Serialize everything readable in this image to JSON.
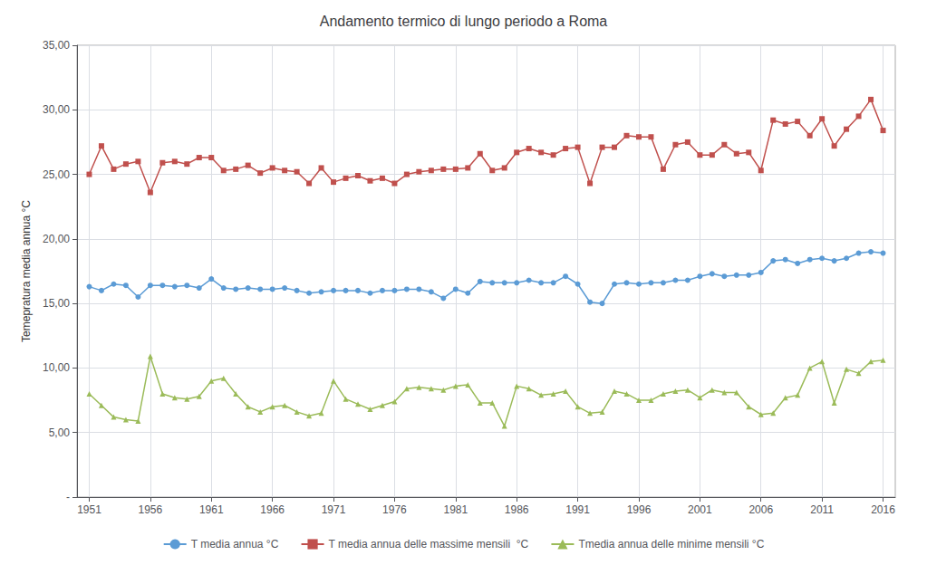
{
  "chart_data": {
    "type": "line",
    "title": "Andamento termico di lungo periodo a Roma",
    "y_label": "Temepratura media annua °C",
    "x": [
      1951,
      1952,
      1953,
      1954,
      1955,
      1956,
      1957,
      1958,
      1959,
      1960,
      1961,
      1962,
      1963,
      1964,
      1965,
      1966,
      1967,
      1968,
      1969,
      1970,
      1971,
      1972,
      1973,
      1974,
      1975,
      1976,
      1977,
      1978,
      1979,
      1980,
      1981,
      1982,
      1983,
      1984,
      1985,
      1986,
      1987,
      1988,
      1989,
      1990,
      1991,
      1992,
      1993,
      1994,
      1995,
      1996,
      1997,
      1998,
      1999,
      2000,
      2001,
      2002,
      2003,
      2004,
      2005,
      2006,
      2007,
      2008,
      2009,
      2010,
      2011,
      2012,
      2013,
      2014,
      2015,
      2016
    ],
    "series": [
      {
        "name": "T media annua °C",
        "color": "#5B9BD5",
        "marker": "circle",
        "values": [
          16.3,
          16.0,
          16.5,
          16.4,
          15.5,
          16.4,
          16.4,
          16.3,
          16.4,
          16.2,
          16.9,
          16.2,
          16.1,
          16.2,
          16.1,
          16.1,
          16.2,
          16.0,
          15.8,
          15.9,
          16.0,
          16.0,
          16.0,
          15.8,
          16.0,
          16.0,
          16.1,
          16.1,
          15.9,
          15.4,
          16.1,
          15.8,
          16.7,
          16.6,
          16.6,
          16.6,
          16.8,
          16.6,
          16.6,
          17.1,
          16.5,
          15.1,
          15.0,
          16.5,
          16.6,
          16.5,
          16.6,
          16.6,
          16.8,
          16.8,
          17.1,
          17.3,
          17.1,
          17.2,
          17.2,
          17.4,
          18.3,
          18.4,
          18.1,
          18.4,
          18.5,
          18.3,
          18.5,
          18.9,
          19.0,
          18.9
        ]
      },
      {
        "name": "T media annua delle massime mensili  °C",
        "color": "#C0504D",
        "marker": "square",
        "values": [
          25.0,
          27.2,
          25.4,
          25.8,
          26.0,
          23.6,
          25.9,
          26.0,
          25.8,
          26.3,
          26.3,
          25.3,
          25.4,
          25.7,
          25.1,
          25.5,
          25.3,
          25.2,
          24.3,
          25.5,
          24.4,
          24.7,
          24.9,
          24.5,
          24.7,
          24.3,
          25.0,
          25.2,
          25.3,
          25.4,
          25.4,
          25.5,
          26.6,
          25.3,
          25.5,
          26.7,
          27.0,
          26.7,
          26.5,
          27.0,
          27.1,
          24.3,
          27.1,
          27.1,
          28.0,
          27.9,
          27.9,
          25.4,
          27.3,
          27.5,
          26.5,
          26.5,
          27.3,
          26.6,
          26.7,
          25.3,
          29.2,
          28.9,
          29.1,
          28.0,
          29.3,
          27.2,
          28.5,
          29.5,
          30.8,
          28.4
        ]
      },
      {
        "name": "Tmedia annua delle minime mensili °C",
        "color": "#9BBB59",
        "marker": "triangle",
        "values": [
          8.0,
          7.1,
          6.2,
          6.0,
          5.9,
          10.9,
          8.0,
          7.7,
          7.6,
          7.8,
          9.0,
          9.2,
          8.0,
          7.0,
          6.6,
          7.0,
          7.1,
          6.6,
          6.3,
          6.5,
          9.0,
          7.6,
          7.2,
          6.8,
          7.1,
          7.4,
          8.4,
          8.5,
          8.4,
          8.3,
          8.6,
          8.7,
          7.3,
          7.3,
          5.5,
          8.6,
          8.4,
          7.9,
          8.0,
          8.2,
          7.0,
          6.5,
          6.6,
          8.2,
          8.0,
          7.5,
          7.5,
          8.0,
          8.2,
          8.3,
          7.7,
          8.3,
          8.1,
          8.1,
          7.0,
          6.4,
          6.5,
          7.7,
          7.9,
          10.0,
          10.5,
          7.3,
          9.9,
          9.6,
          10.5,
          10.6
        ]
      }
    ],
    "xlim": [
      1950,
      2017
    ],
    "xticks": [
      1951,
      1956,
      1961,
      1966,
      1971,
      1976,
      1981,
      1986,
      1991,
      1996,
      2001,
      2006,
      2011,
      2016
    ],
    "ylim": [
      0,
      35
    ],
    "yticks": [
      {
        "value": 0,
        "label": "-"
      },
      {
        "value": 5,
        "label": "5,00"
      },
      {
        "value": 10,
        "label": "10,00"
      },
      {
        "value": 15,
        "label": "15,00"
      },
      {
        "value": 20,
        "label": "20,00"
      },
      {
        "value": 25,
        "label": "25,00"
      },
      {
        "value": 30,
        "label": "30,00"
      },
      {
        "value": 35,
        "label": "35,00"
      }
    ],
    "grid": true,
    "legend": "bottom"
  }
}
